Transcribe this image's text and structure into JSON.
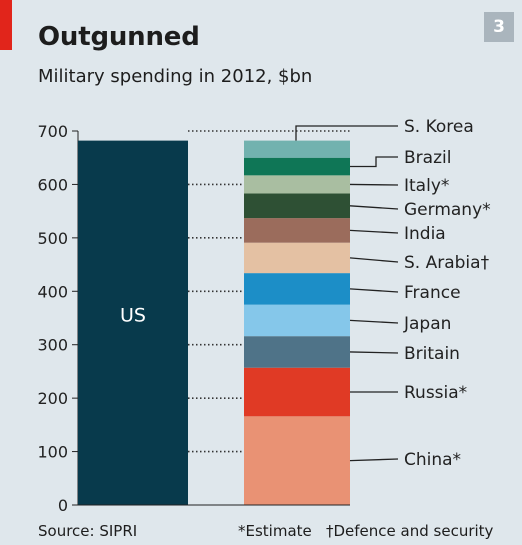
{
  "header": {
    "title": "Outgunned",
    "subtitle": "Military spending in 2012, $bn",
    "badge": "3"
  },
  "footer": {
    "source": "Source: SIPRI",
    "note_estimate": "*Estimate",
    "note_defence": "†Defence and security"
  },
  "colors": {
    "background": "#dfe7ec",
    "accent_red": "#e1251b",
    "us_bar": "#083a4c"
  },
  "chart_data": {
    "type": "bar",
    "title": "Outgunned",
    "subtitle": "Military spending in 2012, $bn",
    "ylim": [
      0,
      700
    ],
    "yticks": [
      0,
      100,
      200,
      300,
      400,
      500,
      600,
      700
    ],
    "ytick_labels": [
      "0",
      "100",
      "200",
      "300",
      "400",
      "500",
      "600",
      "700"
    ],
    "us": {
      "label": "US",
      "value": 682,
      "color": "#083a4c"
    },
    "stack": [
      {
        "name": "China*",
        "value": 166,
        "color": "#e99274"
      },
      {
        "name": "Russia*",
        "value": 91,
        "color": "#e03a25"
      },
      {
        "name": "Britain",
        "value": 59,
        "color": "#4f7388"
      },
      {
        "name": "Japan",
        "value": 59,
        "color": "#85c7ea"
      },
      {
        "name": "France",
        "value": 59,
        "color": "#1c8ec7"
      },
      {
        "name": "S. Arabia†",
        "value": 57,
        "color": "#e4c1a3"
      },
      {
        "name": "India",
        "value": 46,
        "color": "#9b6c5c"
      },
      {
        "name": "Germany*",
        "value": 46,
        "color": "#2e5034"
      },
      {
        "name": "Italy*",
        "value": 34,
        "color": "#a9bea1"
      },
      {
        "name": "Brazil",
        "value": 33,
        "color": "#0f7656"
      },
      {
        "name": "S. Korea",
        "value": 32,
        "color": "#72b2af"
      }
    ]
  }
}
